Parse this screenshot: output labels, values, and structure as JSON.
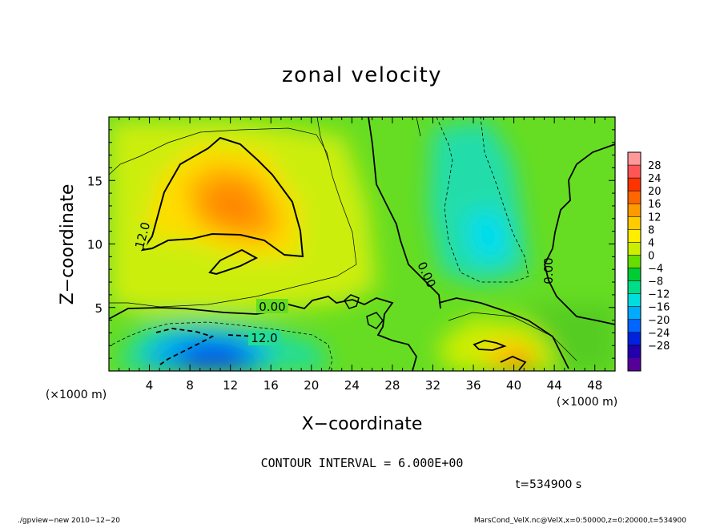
{
  "chart_data": {
    "type": "heatmap",
    "title": "zonal velocity",
    "xlabel": "X−coordinate",
    "ylabel": "Z−coordinate",
    "x_unit": "(×1000 m)",
    "y_unit": "(×1000 m)",
    "xlim": [
      0,
      50
    ],
    "ylim": [
      0,
      20
    ],
    "x_ticks": [
      "4",
      "8",
      "12",
      "16",
      "20",
      "24",
      "28",
      "32",
      "36",
      "40",
      "44",
      "48"
    ],
    "y_ticks": [
      "5",
      "10",
      "15"
    ],
    "contour_labels": [
      "12.0",
      "0.00",
      "12.0",
      "0.00",
      "0.00"
    ],
    "contour_interval": "CONTOUR INTERVAL = 6.000E+00",
    "time_label": "t=534900 s",
    "colorbar": {
      "labels": [
        "28",
        "24",
        "20",
        "16",
        "12",
        "8",
        "4",
        "0",
        "−4",
        "−8",
        "−12",
        "−16",
        "−20",
        "−24",
        "−28"
      ],
      "colors": [
        "#ff9999",
        "#ff5555",
        "#ff3300",
        "#ff6600",
        "#ff9900",
        "#ffcc00",
        "#ffee00",
        "#ccee00",
        "#66dd00",
        "#00cc33",
        "#00dd88",
        "#00dddd",
        "#00aaff",
        "#0066ff",
        "#0022dd",
        "#2200aa",
        "#550099"
      ]
    },
    "features": [
      {
        "name": "jet maximum",
        "x": 13,
        "z": 13,
        "value": 16
      },
      {
        "name": "low-level minimum",
        "x": 12,
        "z": 1.5,
        "value": -18
      },
      {
        "name": "upper negative region",
        "x": 38,
        "z": 10,
        "value": -10
      },
      {
        "name": "low-level maximum",
        "x": 41,
        "z": 0.8,
        "value": 18
      }
    ]
  },
  "footer": {
    "left": "./gpview−new   2010−12−20",
    "right": "MarsCond_VelX.nc@VelX,x=0:50000,z=0:20000,t=534900"
  }
}
